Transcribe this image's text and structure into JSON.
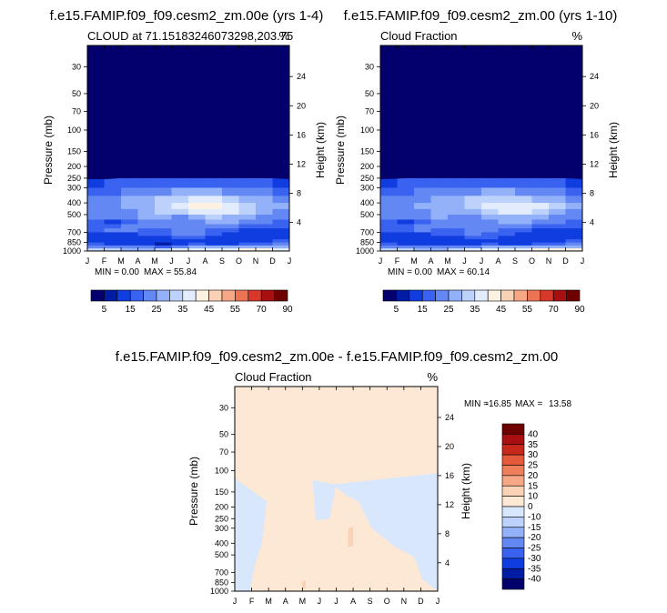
{
  "colors": {
    "panel_frame": "#000000",
    "cloud_scale": [
      "#03006d",
      "#001ca4",
      "#0f3de0",
      "#3a62f0",
      "#6388f4",
      "#92b1f8",
      "#bdd2fb",
      "#e2ecfd",
      "#fdf1e2",
      "#f9d1b5",
      "#f5a786",
      "#ec7353",
      "#d8382a",
      "#a80f10",
      "#6e0000"
    ],
    "diff_scale": [
      "#03006d",
      "#001ca4",
      "#0f3de0",
      "#3a62f0",
      "#6388f4",
      "#92b1f8",
      "#bdd2fb",
      "#d8e7fb",
      "#fde8d6",
      "#fbd2b6",
      "#f5a786",
      "#ee7f5b",
      "#e45a3a",
      "#c8281b",
      "#a80f10",
      "#6e0000"
    ]
  },
  "chart_data": [
    {
      "type": "heatmap",
      "title": "f.e15.FAMIP.f09_f09.cesm2_zm.00e (yrs 1-4)",
      "subtitle_left": "CLOUD at 71.15183246073298,203.75",
      "subtitle_right": "%",
      "xlabel": "",
      "ylabel": "Pressure (mb)",
      "ylabel_right": "Height (km)",
      "x_ticklabels": [
        "J",
        "F",
        "M",
        "A",
        "M",
        "J",
        "J",
        "A",
        "S",
        "O",
        "N",
        "D",
        "J"
      ],
      "y_ticks": [
        30,
        50,
        70,
        100,
        150,
        200,
        250,
        300,
        400,
        500,
        700,
        850,
        1000
      ],
      "ylim_mb": [
        20,
        1000
      ],
      "height_ticks_km": [
        4,
        8,
        12,
        16,
        20,
        24
      ],
      "stats": {
        "min_label": "MIN =",
        "min": "0.00",
        "max_label": "MAX =",
        "max": "55.84"
      },
      "colorbar_labels": [
        "5",
        "15",
        "25",
        "35",
        "45",
        "55",
        "70",
        "90"
      ],
      "colorbar_orientation": "horizontal",
      "cloud_top_mb": [
        255,
        255,
        250,
        240,
        232,
        225,
        235,
        240,
        232,
        242,
        248,
        250,
        255
      ],
      "field_levels": {
        "pressure_mb": [
          275,
          325,
          375,
          425,
          475,
          525,
          575,
          625,
          675,
          725,
          775,
          825,
          875,
          925,
          975
        ],
        "cloud_pct": [
          [
            15,
            15,
            16,
            16,
            17,
            18,
            18,
            19,
            19,
            17,
            16,
            15,
            15
          ],
          [
            17,
            18,
            20,
            21,
            23,
            25,
            26,
            26,
            25,
            23,
            22,
            20,
            18
          ],
          [
            20,
            22,
            25,
            26,
            30,
            34,
            36,
            38,
            36,
            32,
            28,
            25,
            21
          ],
          [
            22,
            24,
            26,
            26,
            30,
            33,
            40,
            45,
            42,
            37,
            32,
            28,
            24
          ],
          [
            22,
            24,
            22,
            27,
            32,
            30,
            36,
            40,
            38,
            34,
            30,
            26,
            24
          ],
          [
            22,
            22,
            20,
            28,
            30,
            22,
            28,
            32,
            30,
            28,
            26,
            24,
            22
          ],
          [
            18,
            16,
            12,
            22,
            28,
            22,
            24,
            26,
            26,
            28,
            22,
            20,
            18
          ],
          [
            16,
            18,
            20,
            26,
            24,
            22,
            22,
            24,
            22,
            22,
            18,
            16,
            15
          ],
          [
            14,
            20,
            22,
            22,
            18,
            20,
            26,
            22,
            18,
            16,
            14,
            13,
            14
          ],
          [
            13,
            16,
            14,
            16,
            16,
            22,
            24,
            18,
            16,
            14,
            13,
            14,
            14
          ],
          [
            14,
            12,
            10,
            12,
            14,
            16,
            18,
            16,
            14,
            12,
            12,
            14,
            16
          ],
          [
            16,
            12,
            10,
            12,
            10,
            14,
            16,
            14,
            12,
            12,
            14,
            16,
            16
          ],
          [
            18,
            14,
            14,
            16,
            8,
            12,
            16,
            16,
            14,
            16,
            18,
            20,
            22
          ],
          [
            26,
            24,
            22,
            24,
            18,
            22,
            26,
            28,
            26,
            28,
            30,
            30,
            30
          ],
          [
            35,
            32,
            30,
            28,
            30,
            34,
            38,
            40,
            38,
            40,
            42,
            40,
            38
          ]
        ]
      }
    },
    {
      "type": "heatmap",
      "title": "f.e15.FAMIP.f09_f09.cesm2_zm.00 (yrs 1-10)",
      "subtitle_left": "Cloud Fraction",
      "subtitle_right": "%",
      "xlabel": "",
      "ylabel": "Pressure (mb)",
      "ylabel_right": "Height (km)",
      "x_ticklabels": [
        "J",
        "F",
        "M",
        "A",
        "M",
        "J",
        "J",
        "A",
        "S",
        "O",
        "N",
        "D",
        "J"
      ],
      "y_ticks": [
        30,
        50,
        70,
        100,
        150,
        200,
        250,
        300,
        400,
        500,
        700,
        850,
        1000
      ],
      "ylim_mb": [
        20,
        1000
      ],
      "height_ticks_km": [
        4,
        8,
        12,
        16,
        20,
        24
      ],
      "stats": {
        "min_label": "MIN =",
        "min": "0.00",
        "max_label": "MAX =",
        "max": "60.14"
      },
      "colorbar_labels": [
        "5",
        "15",
        "25",
        "35",
        "45",
        "55",
        "70",
        "90"
      ],
      "colorbar_orientation": "horizontal",
      "cloud_top_mb": [
        255,
        252,
        248,
        240,
        232,
        228,
        232,
        238,
        232,
        240,
        246,
        250,
        255
      ],
      "field_levels": {
        "pressure_mb": [
          275,
          325,
          375,
          425,
          475,
          525,
          575,
          625,
          675,
          725,
          775,
          825,
          875,
          925,
          975
        ],
        "cloud_pct": [
          [
            15,
            15,
            16,
            16,
            17,
            18,
            18,
            19,
            19,
            17,
            16,
            15,
            15
          ],
          [
            17,
            18,
            20,
            21,
            22,
            24,
            25,
            26,
            25,
            23,
            22,
            20,
            18
          ],
          [
            20,
            22,
            24,
            26,
            28,
            30,
            34,
            36,
            34,
            32,
            28,
            25,
            21
          ],
          [
            22,
            24,
            26,
            26,
            28,
            30,
            34,
            38,
            40,
            38,
            34,
            28,
            24
          ],
          [
            22,
            24,
            22,
            26,
            28,
            26,
            32,
            36,
            38,
            34,
            30,
            26,
            24
          ],
          [
            20,
            22,
            20,
            26,
            28,
            22,
            26,
            30,
            30,
            28,
            26,
            24,
            22
          ],
          [
            18,
            16,
            14,
            22,
            26,
            22,
            24,
            26,
            26,
            26,
            22,
            20,
            18
          ],
          [
            16,
            18,
            20,
            24,
            24,
            22,
            22,
            24,
            22,
            22,
            18,
            16,
            15
          ],
          [
            14,
            18,
            20,
            22,
            18,
            20,
            24,
            22,
            18,
            16,
            14,
            13,
            14
          ],
          [
            13,
            16,
            14,
            16,
            16,
            20,
            22,
            18,
            16,
            14,
            13,
            14,
            14
          ],
          [
            14,
            12,
            12,
            12,
            14,
            16,
            18,
            16,
            14,
            12,
            12,
            14,
            16
          ],
          [
            16,
            12,
            10,
            12,
            12,
            14,
            16,
            14,
            12,
            12,
            14,
            16,
            16
          ],
          [
            18,
            14,
            14,
            16,
            10,
            12,
            16,
            16,
            14,
            16,
            18,
            20,
            22
          ],
          [
            26,
            24,
            22,
            24,
            20,
            22,
            26,
            28,
            26,
            28,
            30,
            30,
            30
          ],
          [
            36,
            34,
            30,
            28,
            30,
            34,
            38,
            40,
            38,
            40,
            44,
            42,
            40
          ]
        ]
      }
    },
    {
      "type": "heatmap",
      "title": "f.e15.FAMIP.f09_f09.cesm2_zm.00e - f.e15.FAMIP.f09_f09.cesm2_zm.00",
      "subtitle_left": "Cloud Fraction",
      "subtitle_right": "%",
      "xlabel": "",
      "ylabel": "Pressure (mb)",
      "ylabel_right": "Height (km)",
      "x_ticklabels": [
        "J",
        "F",
        "M",
        "A",
        "M",
        "J",
        "J",
        "A",
        "S",
        "O",
        "N",
        "D",
        "J"
      ],
      "y_ticks": [
        30,
        50,
        70,
        100,
        150,
        200,
        250,
        300,
        400,
        500,
        700,
        850,
        1000
      ],
      "ylim_mb": [
        20,
        1000
      ],
      "height_ticks_km": [
        4,
        8,
        12,
        16,
        20,
        24
      ],
      "stats": {
        "min_label": "MIN =",
        "min": "-16.85",
        "max_label": "MAX =",
        "max": "13.58"
      },
      "colorbar_labels": [
        "40",
        "35",
        "30",
        "25",
        "20",
        "15",
        "10",
        "0",
        "-10",
        "-15",
        "-20",
        "-25",
        "-30",
        "-35",
        "-40"
      ],
      "colorbar_orientation": "vertical",
      "background_value": 0,
      "regions": [
        {
          "name": "negative-left",
          "value": -5,
          "x_month": [
            0,
            1.9,
            1.6,
            1.2,
            0.9,
            0
          ],
          "p_mb": [
            115,
            180,
            400,
            600,
            1000,
            1000
          ]
        },
        {
          "name": "negative-mid",
          "value": -5,
          "x_month": [
            4.6,
            6.0,
            5.6,
            4.8
          ],
          "p_mb": [
            120,
            130,
            250,
            260
          ]
        },
        {
          "name": "negative-right",
          "value": -5,
          "x_month": [
            5.8,
            12,
            12,
            11.1,
            10.6,
            9.4,
            8.1,
            7.3,
            6.6
          ],
          "p_mb": [
            130,
            105,
            1000,
            800,
            520,
            420,
            300,
            180,
            160
          ]
        },
        {
          "name": "negative-spot",
          "value": -5,
          "x_month": [
            0.3,
            1.0,
            0.9,
            0.2
          ],
          "p_mb": [
            560,
            520,
            800,
            850
          ]
        },
        {
          "name": "positive-spot-a",
          "value": 12,
          "x_month": [
            6.7,
            7.0,
            7.0,
            6.7
          ],
          "p_mb": [
            300,
            290,
            420,
            430
          ]
        },
        {
          "name": "positive-spot-b",
          "value": 12,
          "x_month": [
            4.0,
            4.2,
            4.2,
            4.0
          ],
          "p_mb": [
            820,
            820,
            950,
            950
          ]
        }
      ]
    }
  ]
}
